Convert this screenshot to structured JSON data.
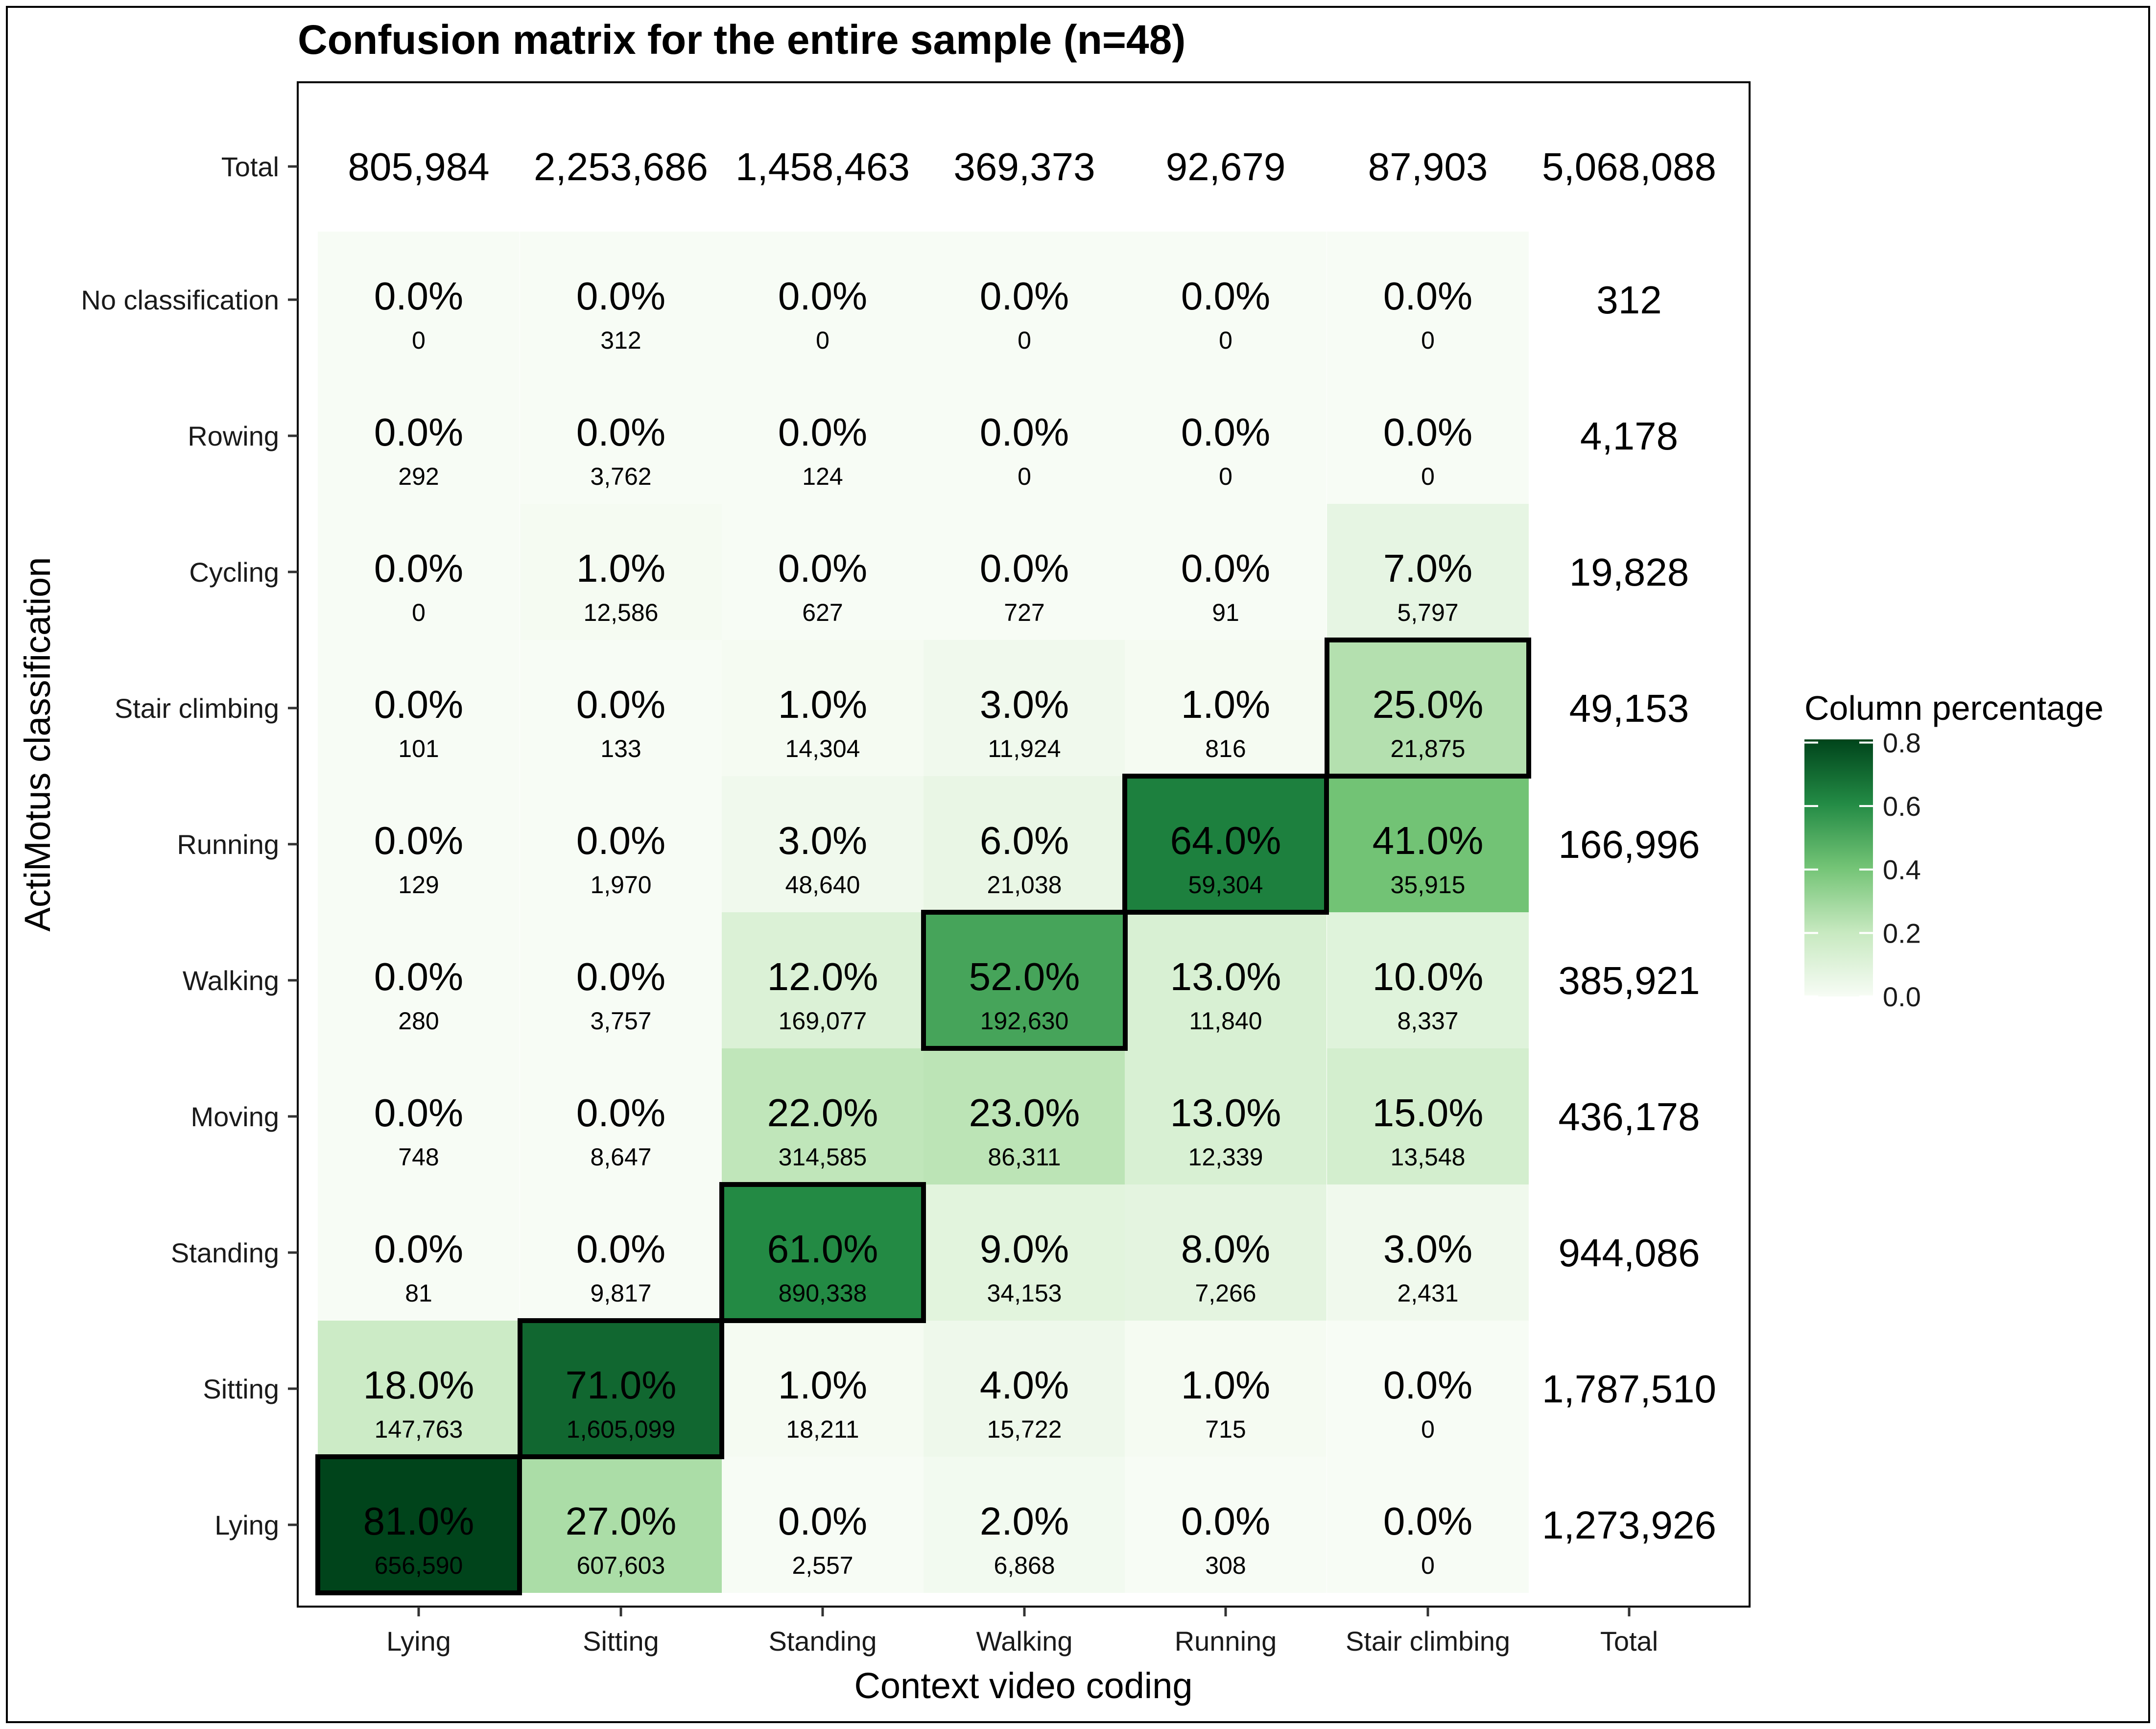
{
  "chart_data": {
    "type": "heatmap",
    "title": "Confusion matrix for the entire sample (n=48)",
    "xlabel": "Context video coding",
    "ylabel": "ActiMotus classification",
    "columns": [
      "Lying",
      "Sitting",
      "Standing",
      "Walking",
      "Running",
      "Stair climbing"
    ],
    "total_label": "Total",
    "column_totals": [
      "805,984",
      "2,253,686",
      "1,458,463",
      "369,373",
      "92,679",
      "87,903"
    ],
    "grand_total": "5,068,088",
    "rows": [
      {
        "label": "No classification",
        "percent_labels": [
          "0.0%",
          "0.0%",
          "0.0%",
          "0.0%",
          "0.0%",
          "0.0%"
        ],
        "count_labels": [
          "0",
          "312",
          "0",
          "0",
          "0",
          "0"
        ],
        "values": [
          0.0,
          0.0,
          0.0,
          0.0,
          0.0,
          0.0
        ],
        "row_total": "312"
      },
      {
        "label": "Rowing",
        "percent_labels": [
          "0.0%",
          "0.0%",
          "0.0%",
          "0.0%",
          "0.0%",
          "0.0%"
        ],
        "count_labels": [
          "292",
          "3,762",
          "124",
          "0",
          "0",
          "0"
        ],
        "values": [
          0.0,
          0.0,
          0.0,
          0.0,
          0.0,
          0.0
        ],
        "row_total": "4,178"
      },
      {
        "label": "Cycling",
        "percent_labels": [
          "0.0%",
          "1.0%",
          "0.0%",
          "0.0%",
          "0.0%",
          "7.0%"
        ],
        "count_labels": [
          "0",
          "12,586",
          "627",
          "727",
          "91",
          "5,797"
        ],
        "values": [
          0.0,
          0.01,
          0.0,
          0.0,
          0.0,
          0.07
        ],
        "row_total": "19,828"
      },
      {
        "label": "Stair climbing",
        "percent_labels": [
          "0.0%",
          "0.0%",
          "1.0%",
          "3.0%",
          "1.0%",
          "25.0%"
        ],
        "count_labels": [
          "101",
          "133",
          "14,304",
          "11,924",
          "816",
          "21,875"
        ],
        "values": [
          0.0,
          0.0,
          0.01,
          0.03,
          0.01,
          0.25
        ],
        "row_total": "49,153"
      },
      {
        "label": "Running",
        "percent_labels": [
          "0.0%",
          "0.0%",
          "3.0%",
          "6.0%",
          "64.0%",
          "41.0%"
        ],
        "count_labels": [
          "129",
          "1,970",
          "48,640",
          "21,038",
          "59,304",
          "35,915"
        ],
        "values": [
          0.0,
          0.0,
          0.03,
          0.06,
          0.64,
          0.41
        ],
        "row_total": "166,996"
      },
      {
        "label": "Walking",
        "percent_labels": [
          "0.0%",
          "0.0%",
          "12.0%",
          "52.0%",
          "13.0%",
          "10.0%"
        ],
        "count_labels": [
          "280",
          "3,757",
          "169,077",
          "192,630",
          "11,840",
          "8,337"
        ],
        "values": [
          0.0,
          0.0,
          0.12,
          0.52,
          0.13,
          0.1
        ],
        "row_total": "385,921"
      },
      {
        "label": "Moving",
        "percent_labels": [
          "0.0%",
          "0.0%",
          "22.0%",
          "23.0%",
          "13.0%",
          "15.0%"
        ],
        "count_labels": [
          "748",
          "8,647",
          "314,585",
          "86,311",
          "12,339",
          "13,548"
        ],
        "values": [
          0.0,
          0.0,
          0.22,
          0.23,
          0.13,
          0.15
        ],
        "row_total": "436,178"
      },
      {
        "label": "Standing",
        "percent_labels": [
          "0.0%",
          "0.0%",
          "61.0%",
          "9.0%",
          "8.0%",
          "3.0%"
        ],
        "count_labels": [
          "81",
          "9,817",
          "890,338",
          "34,153",
          "7,266",
          "2,431"
        ],
        "values": [
          0.0,
          0.0,
          0.61,
          0.09,
          0.08,
          0.03
        ],
        "row_total": "944,086"
      },
      {
        "label": "Sitting",
        "percent_labels": [
          "18.0%",
          "71.0%",
          "1.0%",
          "4.0%",
          "1.0%",
          "0.0%"
        ],
        "count_labels": [
          "147,763",
          "1,605,099",
          "18,211",
          "15,722",
          "715",
          "0"
        ],
        "values": [
          0.18,
          0.71,
          0.01,
          0.04,
          0.01,
          0.0
        ],
        "row_total": "1,787,510"
      },
      {
        "label": "Lying",
        "percent_labels": [
          "81.0%",
          "27.0%",
          "0.0%",
          "2.0%",
          "0.0%",
          "0.0%"
        ],
        "count_labels": [
          "656,590",
          "607,603",
          "2,557",
          "6,868",
          "308",
          "0"
        ],
        "values": [
          0.81,
          0.27,
          0.0,
          0.02,
          0.0,
          0.0
        ],
        "row_total": "1,273,926"
      }
    ],
    "highlighted_cells": [
      {
        "row": "Lying",
        "column": "Lying"
      },
      {
        "row": "Sitting",
        "column": "Sitting"
      },
      {
        "row": "Standing",
        "column": "Standing"
      },
      {
        "row": "Walking",
        "column": "Walking"
      },
      {
        "row": "Running",
        "column": "Running"
      },
      {
        "row": "Stair climbing",
        "column": "Stair climbing"
      }
    ],
    "legend": {
      "title": "Column percentage",
      "tick_labels": [
        "0.0",
        "0.2",
        "0.4",
        "0.6",
        "0.8"
      ],
      "tick_values": [
        0.0,
        0.2,
        0.4,
        0.6,
        0.8
      ],
      "range": [
        0.0,
        0.81
      ],
      "placement": "right",
      "colors": [
        "#f7fcf5",
        "#c7e9c0",
        "#74c476",
        "#238b45",
        "#00441b"
      ]
    },
    "grid": false
  }
}
